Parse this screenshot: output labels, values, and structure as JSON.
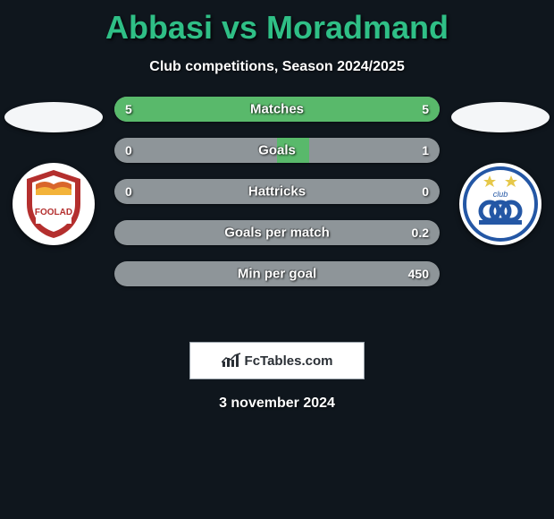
{
  "header": {
    "title": "Abbasi vs Moradmand",
    "title_color": "#2fbf86",
    "subtitle": "Club competitions, Season 2024/2025"
  },
  "background_color": "#0f161d",
  "teams": {
    "left": {
      "badge_bg": "#ffffff",
      "badge_ring": "#b42f2e",
      "badge_inner": "#f3b33a",
      "badge_accent": "#d9662b"
    },
    "right": {
      "badge_bg": "#ffffff",
      "badge_primary": "#2457a5",
      "badge_star": "#e6c84a"
    }
  },
  "bars": {
    "track_color": "#8e9599",
    "fill_color": "#59b96b",
    "items": [
      {
        "label": "Matches",
        "left_text": "5",
        "right_text": "5",
        "left_frac": 1.0,
        "right_frac": 1.0
      },
      {
        "label": "Goals",
        "left_text": "0",
        "right_text": "1",
        "left_frac": 0.0,
        "right_frac": 0.2
      },
      {
        "label": "Hattricks",
        "left_text": "0",
        "right_text": "0",
        "left_frac": 0.0,
        "right_frac": 0.0
      },
      {
        "label": "Goals per match",
        "left_text": "",
        "right_text": "0.2",
        "left_frac": 0.0,
        "right_frac": 0.0
      },
      {
        "label": "Min per goal",
        "left_text": "",
        "right_text": "450",
        "left_frac": 0.0,
        "right_frac": 0.0
      }
    ]
  },
  "footer": {
    "brand_text": "FcTables.com",
    "date_text": "3 november 2024"
  }
}
